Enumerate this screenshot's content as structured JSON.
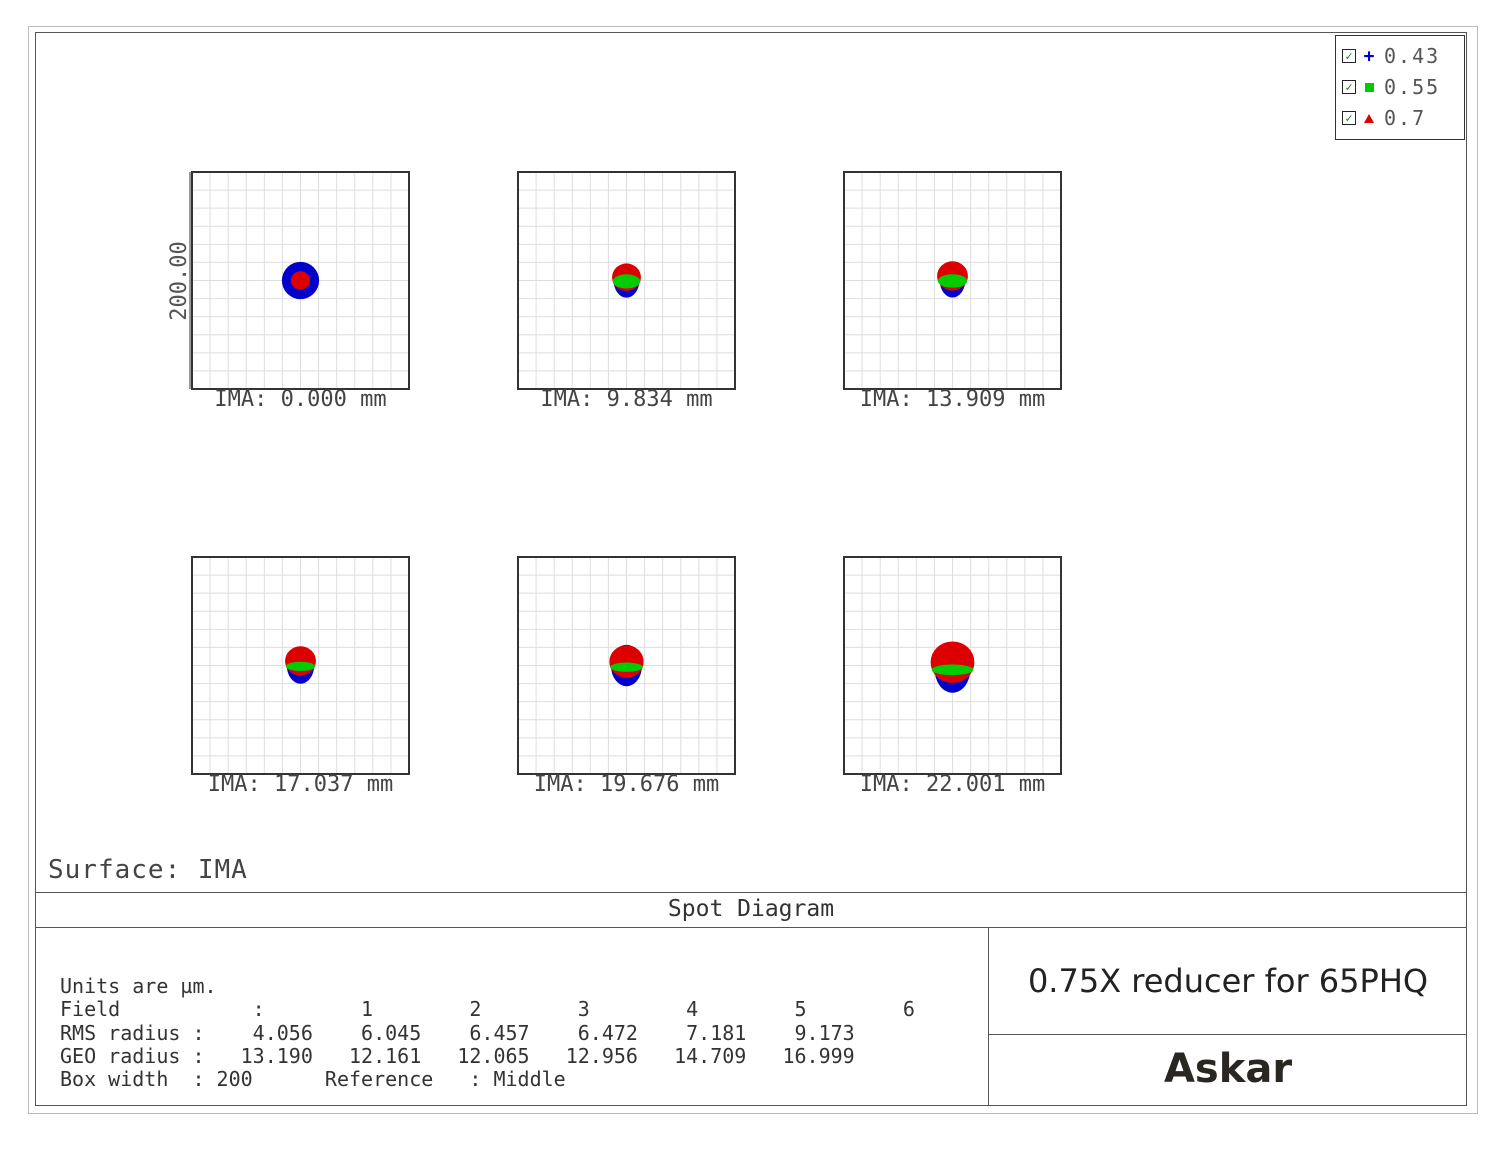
{
  "chart_data": {
    "type": "scatter",
    "title": "Spot Diagram",
    "surface_label": "Surface: IMA",
    "box_width_um": 200,
    "scale_label": "200.00",
    "legend": [
      {
        "label": "0.43",
        "color": "#0000cc",
        "marker": "plus"
      },
      {
        "label": "0.55",
        "color": "#00cc00",
        "marker": "square"
      },
      {
        "label": "0.7",
        "color": "#dd0000",
        "marker": "triangle"
      }
    ],
    "fields": [
      {
        "label": "IMA: 0.000 mm",
        "rms": 4.056,
        "geo": 13.19
      },
      {
        "label": "IMA: 9.834 mm",
        "rms": 6.045,
        "geo": 12.161
      },
      {
        "label": "IMA: 13.909 mm",
        "rms": 6.457,
        "geo": 12.065
      },
      {
        "label": "IMA: 17.037 mm",
        "rms": 6.472,
        "geo": 12.956
      },
      {
        "label": "IMA: 19.676 mm",
        "rms": 7.181,
        "geo": 14.709
      },
      {
        "label": "IMA: 22.001 mm",
        "rms": 9.173,
        "geo": 16.999
      }
    ]
  },
  "stats": {
    "units": "Units are µm.",
    "field_row": "Field           :        1        2        3        4        5        6",
    "rms_row": "RMS radius :    4.056    6.045    6.457    6.472    7.181    9.173",
    "geo_row": "GEO radius :   13.190   12.161   12.065   12.956   14.709   16.999",
    "box_row": "Box width  : 200      Reference   : Middle"
  },
  "footer": {
    "title": "0.75X reducer for 65PHQ",
    "logo": "Askar"
  }
}
